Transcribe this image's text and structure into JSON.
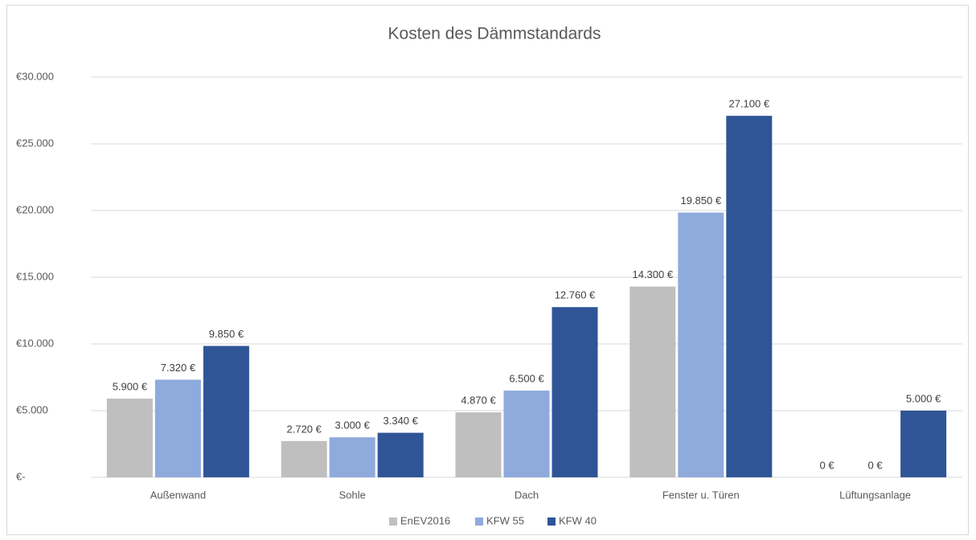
{
  "chart_data": {
    "type": "bar",
    "title": "Kosten des Dämmstandards",
    "categories": [
      "Außenwand",
      "Sohle",
      "Dach",
      "Fenster u. Türen",
      "Lüftungsanlage"
    ],
    "series": [
      {
        "name": "EnEV2016",
        "color": "#bfbfbf",
        "values": [
          5900,
          2720,
          4870,
          14300,
          0
        ],
        "value_labels": [
          "5.900 €",
          "2.720 €",
          "4.870 €",
          "14.300 €",
          "0 €"
        ]
      },
      {
        "name": "KFW 55",
        "color": "#8faadc",
        "values": [
          7320,
          3000,
          6500,
          19850,
          0
        ],
        "value_labels": [
          "7.320 €",
          "3.000 €",
          "6.500 €",
          "19.850 €",
          "0 €"
        ]
      },
      {
        "name": "KFW 40",
        "color": "#2f5597",
        "values": [
          9850,
          3340,
          12760,
          27100,
          5000
        ],
        "value_labels": [
          "9.850 €",
          "3.340 €",
          "12.760 €",
          "27.100 €",
          "5.000 €"
        ]
      }
    ],
    "ylim": [
      0,
      30000
    ],
    "yticks": [
      {
        "value": 0,
        "label": "€-"
      },
      {
        "value": 5000,
        "label": "€5.000"
      },
      {
        "value": 10000,
        "label": "€10.000"
      },
      {
        "value": 15000,
        "label": "€15.000"
      },
      {
        "value": 20000,
        "label": "€20.000"
      },
      {
        "value": 25000,
        "label": "€25.000"
      },
      {
        "value": 30000,
        "label": "€30.000"
      }
    ],
    "grid": true,
    "legend": "bottom"
  }
}
